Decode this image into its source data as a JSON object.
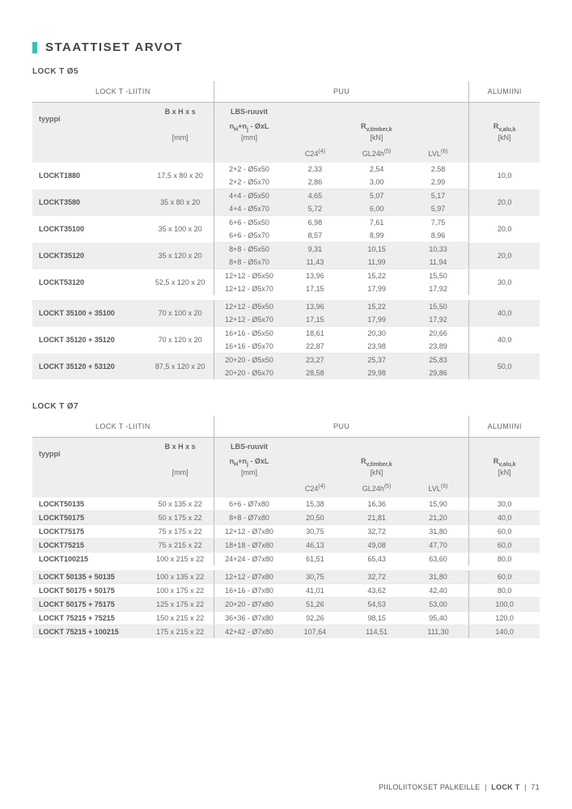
{
  "heading": "STAATTISET ARVOT",
  "section1_title": "LOCK T Ø5",
  "section2_title": "LOCK T Ø7",
  "col_liitin": "LOCK T -LIITIN",
  "col_puu": "PUU",
  "col_alumiini": "ALUMIINI",
  "col_tyyppi": "tyyppi",
  "col_bhs": "B x H x s",
  "col_bhs_unit": "[mm]",
  "col_lbs": "LBS-ruuvit",
  "col_nhnj_unit": "[mm]",
  "col_rv_unit": "[kN]",
  "col_rvalu_unit": "[kN]",
  "table1": {
    "groups": [
      {
        "rows": [
          {
            "type": "LOCKT1880",
            "dim": "17,5 x 80 x 20",
            "lines": [
              {
                "screw": "2+2 - Ø5x50",
                "c24": "2,33",
                "gl": "2,54",
                "lvl": "2,58"
              },
              {
                "screw": "2+2 - Ø5x70",
                "c24": "2,86",
                "gl": "3,00",
                "lvl": "2,99"
              }
            ],
            "alu": "10,0",
            "alt": false
          },
          {
            "type": "LOCKT3580",
            "dim": "35 x 80 x 20",
            "lines": [
              {
                "screw": "4+4 - Ø5x50",
                "c24": "4,65",
                "gl": "5,07",
                "lvl": "5,17"
              },
              {
                "screw": "4+4 - Ø5x70",
                "c24": "5,72",
                "gl": "6,00",
                "lvl": "5,97"
              }
            ],
            "alu": "20,0",
            "alt": true
          },
          {
            "type": "LOCKT35100",
            "dim": "35 x 100 x 20",
            "lines": [
              {
                "screw": "6+6 - Ø5x50",
                "c24": "6,98",
                "gl": "7,61",
                "lvl": "7,75"
              },
              {
                "screw": "6+6 - Ø5x70",
                "c24": "8,57",
                "gl": "8,99",
                "lvl": "8,96"
              }
            ],
            "alu": "20,0",
            "alt": false
          },
          {
            "type": "LOCKT35120",
            "dim": "35 x 120 x 20",
            "lines": [
              {
                "screw": "8+8 - Ø5x50",
                "c24": "9,31",
                "gl": "10,15",
                "lvl": "10,33"
              },
              {
                "screw": "8+8 - Ø5x70",
                "c24": "11,43",
                "gl": "11,99",
                "lvl": "11,94"
              }
            ],
            "alu": "20,0",
            "alt": true
          },
          {
            "type": "LOCKT53120",
            "dim": "52,5 x 120 x 20",
            "lines": [
              {
                "screw": "12+12 - Ø5x50",
                "c24": "13,96",
                "gl": "15,22",
                "lvl": "15,50"
              },
              {
                "screw": "12+12 - Ø5x70",
                "c24": "17,15",
                "gl": "17,99",
                "lvl": "17,92"
              }
            ],
            "alu": "30,0",
            "alt": false
          }
        ]
      },
      {
        "rows": [
          {
            "type": "LOCKT 35100 + 35100",
            "dim": "70 x 100 x 20",
            "lines": [
              {
                "screw": "12+12 - Ø5x50",
                "c24": "13,96",
                "gl": "15,22",
                "lvl": "15,50"
              },
              {
                "screw": "12+12 - Ø5x70",
                "c24": "17,15",
                "gl": "17,99",
                "lvl": "17,92"
              }
            ],
            "alu": "40,0",
            "alt": true
          },
          {
            "type": "LOCKT 35120 + 35120",
            "dim": "70 x 120 x 20",
            "lines": [
              {
                "screw": "16+16 - Ø5x50",
                "c24": "18,61",
                "gl": "20,30",
                "lvl": "20,66"
              },
              {
                "screw": "16+16 - Ø5x70",
                "c24": "22,87",
                "gl": "23,98",
                "lvl": "23,89"
              }
            ],
            "alu": "40,0",
            "alt": false
          },
          {
            "type": "LOCKT 35120 + 53120",
            "dim": "87,5 x 120 x 20",
            "lines": [
              {
                "screw": "20+20 - Ø5x50",
                "c24": "23,27",
                "gl": "25,37",
                "lvl": "25,83"
              },
              {
                "screw": "20+20 - Ø5x70",
                "c24": "28,58",
                "gl": "29,98",
                "lvl": "29,86"
              }
            ],
            "alu": "50,0",
            "alt": true
          }
        ]
      }
    ]
  },
  "table2": {
    "groups": [
      {
        "rows": [
          {
            "type": "LOCKT50135",
            "dim": "50 x 135 x 22",
            "lines": [
              {
                "screw": "6+6 - Ø7x80",
                "c24": "15,38",
                "gl": "16,36",
                "lvl": "15,90"
              }
            ],
            "alu": "30,0",
            "alt": false
          },
          {
            "type": "LOCKT50175",
            "dim": "50 x 175 x 22",
            "lines": [
              {
                "screw": "8+8 - Ø7x80",
                "c24": "20,50",
                "gl": "21,81",
                "lvl": "21,20"
              }
            ],
            "alu": "40,0",
            "alt": true
          },
          {
            "type": "LOCKT75175",
            "dim": "75 x 175 x 22",
            "lines": [
              {
                "screw": "12+12 - Ø7x80",
                "c24": "30,75",
                "gl": "32,72",
                "lvl": "31,80"
              }
            ],
            "alu": "60,0",
            "alt": false
          },
          {
            "type": "LOCKT75215",
            "dim": "75 x 215 x 22",
            "lines": [
              {
                "screw": "18+18 - Ø7x80",
                "c24": "46,13",
                "gl": "49,08",
                "lvl": "47,70"
              }
            ],
            "alu": "60,0",
            "alt": true
          },
          {
            "type": "LOCKT100215",
            "dim": "100 x 215 x 22",
            "lines": [
              {
                "screw": "24+24 - Ø7x80",
                "c24": "61,51",
                "gl": "65,43",
                "lvl": "63,60"
              }
            ],
            "alu": "80,0",
            "alt": false
          }
        ]
      },
      {
        "rows": [
          {
            "type": "LOCKT 50135 + 50135",
            "dim": "100 x 135 x 22",
            "lines": [
              {
                "screw": "12+12 - Ø7x80",
                "c24": "30,75",
                "gl": "32,72",
                "lvl": "31,80"
              }
            ],
            "alu": "60,0",
            "alt": true
          },
          {
            "type": "LOCKT 50175 + 50175",
            "dim": "100 x 175 x 22",
            "lines": [
              {
                "screw": "16+16 - Ø7x80",
                "c24": "41,01",
                "gl": "43,62",
                "lvl": "42,40"
              }
            ],
            "alu": "80,0",
            "alt": false
          },
          {
            "type": "LOCKT 50175 + 75175",
            "dim": "125 x 175 x 22",
            "lines": [
              {
                "screw": "20+20 - Ø7x80",
                "c24": "51,26",
                "gl": "54,53",
                "lvl": "53,00"
              }
            ],
            "alu": "100,0",
            "alt": true
          },
          {
            "type": "LOCKT 75215 + 75215",
            "dim": "150 x 215 x 22",
            "lines": [
              {
                "screw": "36+36 - Ø7x80",
                "c24": "92,26",
                "gl": "98,15",
                "lvl": "95,40"
              }
            ],
            "alu": "120,0",
            "alt": false
          },
          {
            "type": "LOCKT 75215 + 100215",
            "dim": "175 x 215 x 22",
            "lines": [
              {
                "screw": "42+42 - Ø7x80",
                "c24": "107,64",
                "gl": "114,51",
                "lvl": "111,30"
              }
            ],
            "alu": "140,0",
            "alt": true
          }
        ]
      }
    ]
  },
  "footer_left": "PIILOLIITOKSET PALKEILLE",
  "footer_mid": "LOCK T",
  "footer_page": "71"
}
